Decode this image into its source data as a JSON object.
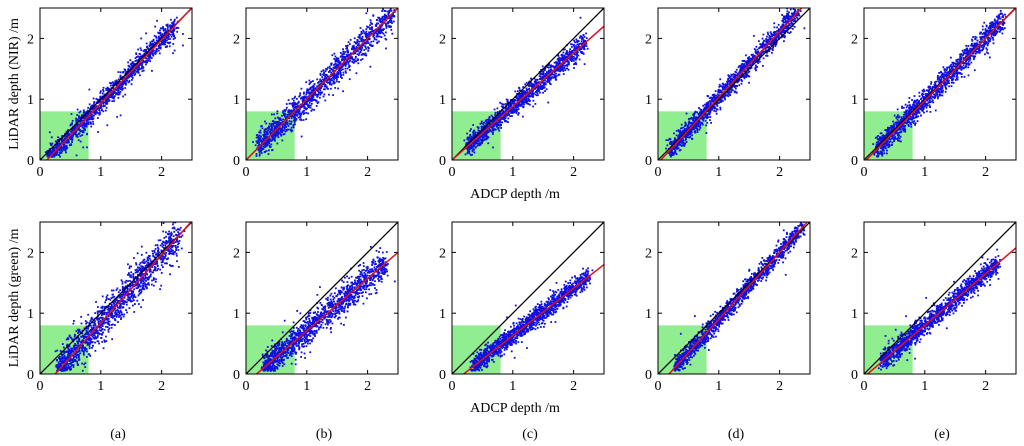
{
  "figure": {
    "ylabels": [
      "LiDAR depth (NIR) /m",
      "LiDAR depth (green) /m"
    ],
    "xlabel": "ADCP depth /m",
    "panel_labels": [
      "(a)",
      "(b)",
      "(c)",
      "(d)",
      "(e)"
    ],
    "colors": {
      "points": "#1010e0",
      "fit_line": "#e0101e",
      "identity_line": "#000000",
      "shallow_region": "#90ee90"
    }
  },
  "chart_data": [
    {
      "type": "scatter",
      "panel": "(a)",
      "row": "NIR",
      "xlim": [
        0,
        2.5
      ],
      "ylim": [
        0,
        2.5
      ],
      "xticks": [
        0,
        1,
        2
      ],
      "yticks": [
        0,
        1,
        2
      ],
      "shallow_region": [
        0,
        0.8
      ],
      "fit": {
        "slope": 1.05,
        "intercept": -0.12
      },
      "identity": true,
      "shape": {
        "xmin": 0.15,
        "xmax": 2.25,
        "noise": 0.08,
        "outlier_rate": 0.04
      }
    },
    {
      "type": "scatter",
      "panel": "(b)",
      "row": "NIR",
      "xlim": [
        0,
        2.5
      ],
      "ylim": [
        0,
        2.5
      ],
      "xticks": [
        0,
        1,
        2
      ],
      "yticks": [
        0,
        1,
        2
      ],
      "shallow_region": [
        0,
        0.8
      ],
      "fit": {
        "slope": 1.0,
        "intercept": 0.0
      },
      "identity": true,
      "shape": {
        "xmin": 0.2,
        "xmax": 2.45,
        "noise": 0.11,
        "outlier_rate": 0.03
      }
    },
    {
      "type": "scatter",
      "panel": "(c)",
      "row": "NIR",
      "xlim": [
        0,
        2.5
      ],
      "ylim": [
        0,
        2.5
      ],
      "xticks": [
        0,
        1,
        2
      ],
      "yticks": [
        0,
        1,
        2
      ],
      "shallow_region": [
        0,
        0.8
      ],
      "fit": {
        "slope": 0.88,
        "intercept": 0.0
      },
      "identity": true,
      "shape": {
        "xmin": 0.25,
        "xmax": 2.2,
        "noise": 0.08,
        "outlier_rate": 0.01
      }
    },
    {
      "type": "scatter",
      "panel": "(d)",
      "row": "NIR",
      "xlim": [
        0,
        2.5
      ],
      "ylim": [
        0,
        2.5
      ],
      "xticks": [
        0,
        1,
        2
      ],
      "yticks": [
        0,
        1,
        2
      ],
      "shallow_region": [
        0,
        0.8
      ],
      "fit": {
        "slope": 1.08,
        "intercept": -0.05
      },
      "identity": true,
      "shape": {
        "xmin": 0.2,
        "xmax": 2.3,
        "noise": 0.08,
        "outlier_rate": 0.01
      }
    },
    {
      "type": "scatter",
      "panel": "(e)",
      "row": "NIR",
      "xlim": [
        0,
        2.5
      ],
      "ylim": [
        0,
        2.5
      ],
      "xticks": [
        0,
        1,
        2
      ],
      "yticks": [
        0,
        1,
        2
      ],
      "shallow_region": [
        0,
        0.8
      ],
      "fit": {
        "slope": 1.02,
        "intercept": -0.04
      },
      "identity": true,
      "shape": {
        "xmin": 0.2,
        "xmax": 2.3,
        "noise": 0.09,
        "outlier_rate": 0.01
      }
    },
    {
      "type": "scatter",
      "panel": "(a)",
      "row": "green",
      "xlim": [
        0,
        2.5
      ],
      "ylim": [
        0,
        2.5
      ],
      "xticks": [
        0,
        1,
        2
      ],
      "yticks": [
        0,
        1,
        2
      ],
      "shallow_region": [
        0,
        0.8
      ],
      "fit": {
        "slope": 1.12,
        "intercept": -0.28
      },
      "identity": true,
      "shape": {
        "xmin": 0.3,
        "xmax": 2.3,
        "noise": 0.15,
        "outlier_rate": 0.05
      }
    },
    {
      "type": "scatter",
      "panel": "(b)",
      "row": "green",
      "xlim": [
        0,
        2.5
      ],
      "ylim": [
        0,
        2.5
      ],
      "xticks": [
        0,
        1,
        2
      ],
      "yticks": [
        0,
        1,
        2
      ],
      "shallow_region": [
        0,
        0.8
      ],
      "fit": {
        "slope": 0.86,
        "intercept": -0.15
      },
      "identity": true,
      "shape": {
        "xmin": 0.3,
        "xmax": 2.3,
        "noise": 0.12,
        "outlier_rate": 0.03
      }
    },
    {
      "type": "scatter",
      "panel": "(c)",
      "row": "green",
      "xlim": [
        0,
        2.5
      ],
      "ylim": [
        0,
        2.5
      ],
      "xticks": [
        0,
        1,
        2
      ],
      "yticks": [
        0,
        1,
        2
      ],
      "shallow_region": [
        0,
        0.8
      ],
      "fit": {
        "slope": 0.78,
        "intercept": -0.15
      },
      "identity": true,
      "shape": {
        "xmin": 0.35,
        "xmax": 2.25,
        "noise": 0.08,
        "outlier_rate": 0.01
      }
    },
    {
      "type": "scatter",
      "panel": "(d)",
      "row": "green",
      "xlim": [
        0,
        2.5
      ],
      "ylim": [
        0,
        2.5
      ],
      "xticks": [
        0,
        1,
        2
      ],
      "yticks": [
        0,
        1,
        2
      ],
      "shallow_region": [
        0,
        0.8
      ],
      "fit": {
        "slope": 1.1,
        "intercept": -0.2
      },
      "identity": true,
      "shape": {
        "xmin": 0.3,
        "xmax": 2.4,
        "noise": 0.07,
        "outlier_rate": 0.01
      }
    },
    {
      "type": "scatter",
      "panel": "(e)",
      "row": "green",
      "xlim": [
        0,
        2.5
      ],
      "ylim": [
        0,
        2.5
      ],
      "xticks": [
        0,
        1,
        2
      ],
      "yticks": [
        0,
        1,
        2
      ],
      "shallow_region": [
        0,
        0.8
      ],
      "fit": {
        "slope": 0.85,
        "intercept": -0.05
      },
      "identity": true,
      "shape": {
        "xmin": 0.3,
        "xmax": 2.2,
        "noise": 0.08,
        "outlier_rate": 0.01
      }
    }
  ]
}
